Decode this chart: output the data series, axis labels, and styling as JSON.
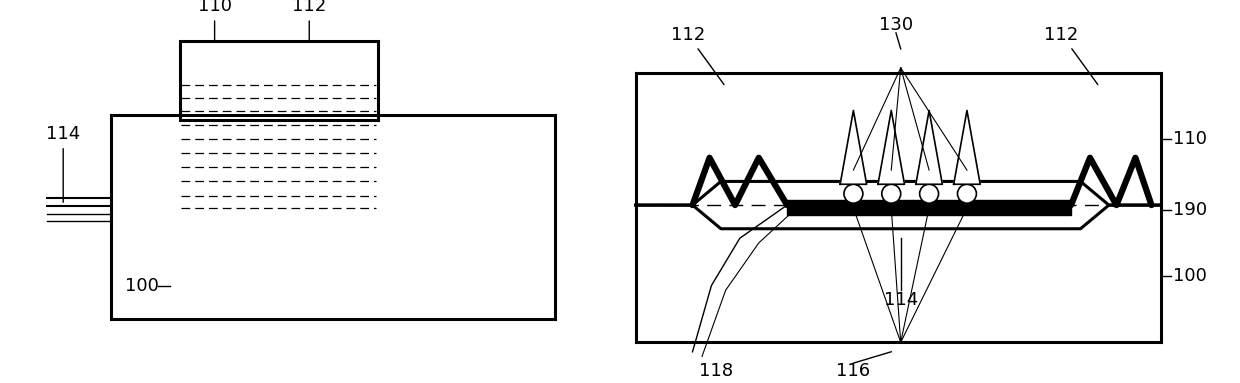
{
  "bg_color": "#ffffff",
  "line_color": "#000000",
  "fig_width": 12.4,
  "fig_height": 3.83,
  "dpi": 100
}
